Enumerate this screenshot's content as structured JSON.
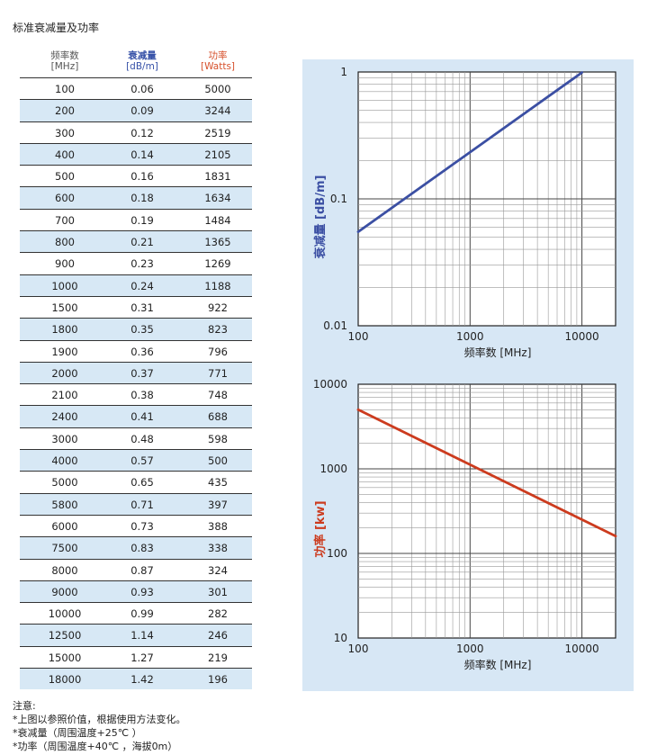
{
  "page": {
    "title": "标准衰减量及功率"
  },
  "table": {
    "headers": [
      {
        "label": "频率数",
        "unit": "[MHz]"
      },
      {
        "label": "衰减量",
        "unit": "[dB/m]"
      },
      {
        "label": "功率",
        "unit": "[Watts]"
      }
    ],
    "rows": [
      [
        "100",
        "0.06",
        "5000"
      ],
      [
        "200",
        "0.09",
        "3244"
      ],
      [
        "300",
        "0.12",
        "2519"
      ],
      [
        "400",
        "0.14",
        "2105"
      ],
      [
        "500",
        "0.16",
        "1831"
      ],
      [
        "600",
        "0.18",
        "1634"
      ],
      [
        "700",
        "0.19",
        "1484"
      ],
      [
        "800",
        "0.21",
        "1365"
      ],
      [
        "900",
        "0.23",
        "1269"
      ],
      [
        "1000",
        "0.24",
        "1188"
      ],
      [
        "1500",
        "0.31",
        "922"
      ],
      [
        "1800",
        "0.35",
        "823"
      ],
      [
        "1900",
        "0.36",
        "796"
      ],
      [
        "2000",
        "0.37",
        "771"
      ],
      [
        "2100",
        "0.38",
        "748"
      ],
      [
        "2400",
        "0.41",
        "688"
      ],
      [
        "3000",
        "0.48",
        "598"
      ],
      [
        "4000",
        "0.57",
        "500"
      ],
      [
        "5000",
        "0.65",
        "435"
      ],
      [
        "5800",
        "0.71",
        "397"
      ],
      [
        "6000",
        "0.73",
        "388"
      ],
      [
        "7500",
        "0.83",
        "338"
      ],
      [
        "8000",
        "0.87",
        "324"
      ],
      [
        "9000",
        "0.93",
        "301"
      ],
      [
        "10000",
        "0.99",
        "282"
      ],
      [
        "12500",
        "1.14",
        "246"
      ],
      [
        "15000",
        "1.27",
        "219"
      ],
      [
        "18000",
        "1.42",
        "196"
      ]
    ]
  },
  "chart_data": [
    {
      "type": "line",
      "xlabel": "频率数 [MHz]",
      "ylabel": "衰减量 [dB/m]",
      "x_scale": "log",
      "y_scale": "log",
      "xlim": [
        100,
        20000
      ],
      "ylim": [
        0.01,
        1
      ],
      "x_ticks": [
        "100",
        "1000",
        "10000"
      ],
      "y_ticks": [
        "1",
        "0.1",
        "0.01"
      ],
      "grid": true,
      "line_color": "#3b4fa3",
      "series": [
        {
          "x": [
            100,
            10000
          ],
          "y": [
            0.055,
            0.99
          ]
        }
      ]
    },
    {
      "type": "line",
      "xlabel": "频率数 [MHz]",
      "ylabel": "功率 [kw]",
      "x_scale": "log",
      "y_scale": "log",
      "xlim": [
        100,
        20000
      ],
      "ylim": [
        10,
        10000
      ],
      "x_ticks": [
        "100",
        "1000",
        "10000"
      ],
      "y_ticks": [
        "10000",
        "1000",
        "100",
        "10"
      ],
      "grid": true,
      "line_color": "#cc3b1e",
      "series": [
        {
          "x": [
            100,
            20000
          ],
          "y": [
            5000,
            160
          ]
        }
      ]
    }
  ],
  "notes": [
    "注意:",
    "*上图以参照价值，根据使用方法变化。",
    "*衰减量（周围温度+25℃ ）",
    "*功率（周围温度+40℃ ，海拔0m）"
  ]
}
